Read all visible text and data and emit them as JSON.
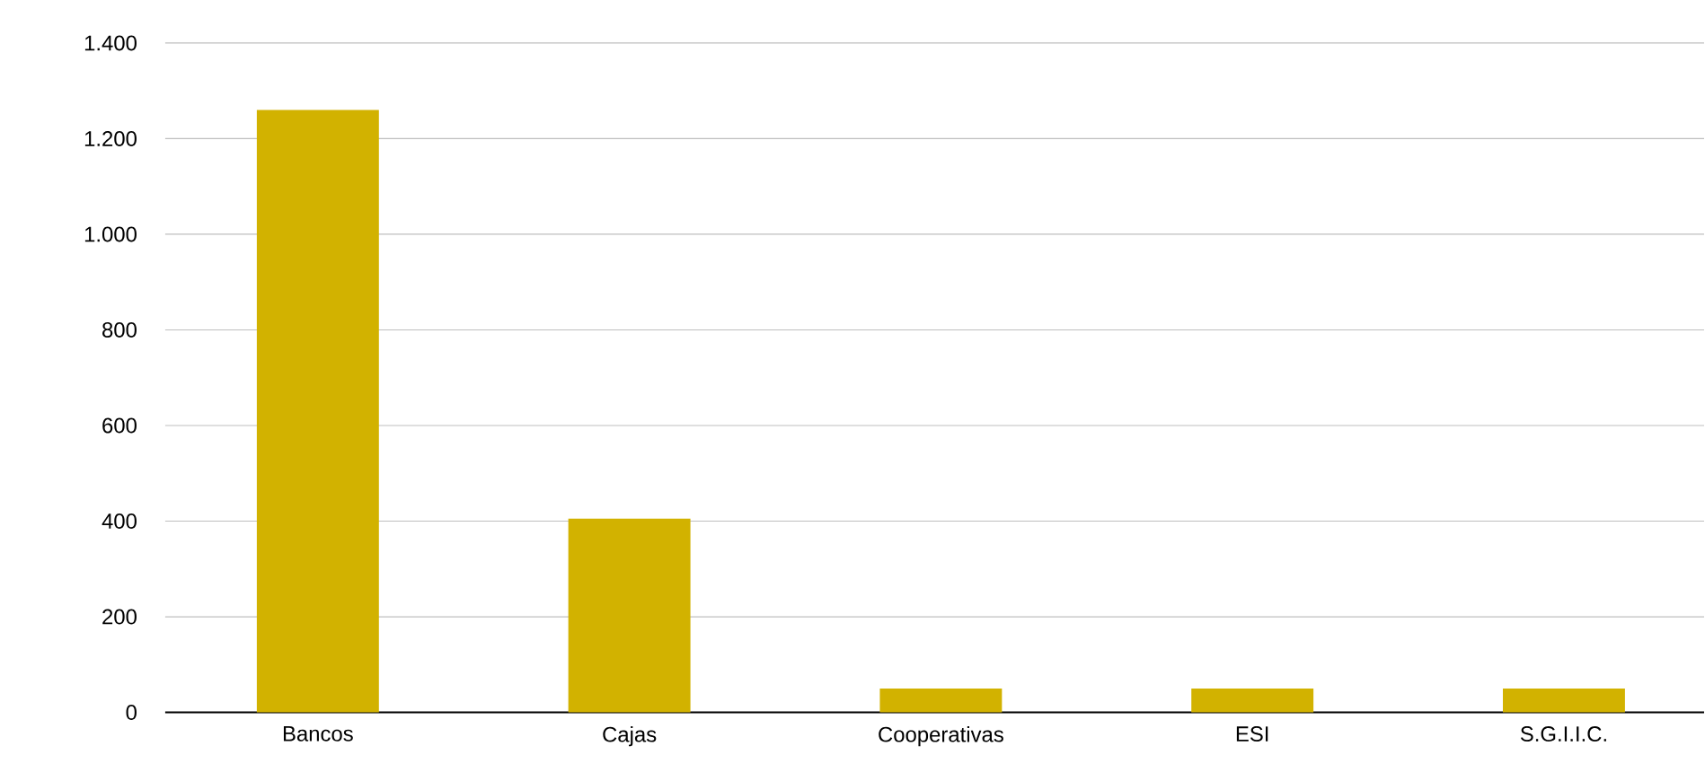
{
  "chart_data": {
    "type": "bar",
    "categories": [
      "Bancos",
      "Cajas",
      "Cooperativas",
      "ESI",
      "S.G.I.I.C."
    ],
    "values": [
      1260,
      405,
      50,
      50,
      50
    ],
    "color": "#d2b200",
    "ylim": [
      0,
      1400
    ],
    "yticks": [
      0,
      200,
      400,
      600,
      800,
      {
        "value": 1000,
        "label": "1.000"
      },
      {
        "value": 1200,
        "label": "1.200"
      },
      {
        "value": 1400,
        "label": "1.400"
      }
    ],
    "grid": "y"
  }
}
